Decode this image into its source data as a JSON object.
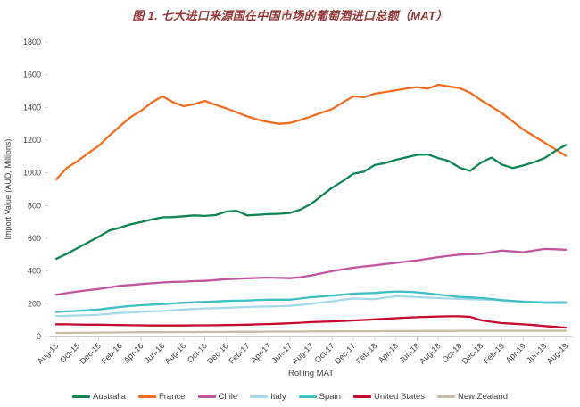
{
  "chart_data": {
    "type": "line",
    "title": "图 1. 七大进口来源国在中国市场的葡萄酒进口总额（MAT）",
    "title_color": "#953735",
    "xlabel": "Rolling MAT",
    "ylabel": "Import Value (AUD, Millions)",
    "ylim": [
      0,
      1800
    ],
    "ytick_step": 200,
    "grid": false,
    "legend_position": "bottom",
    "axis_text_color": "#404040",
    "axis_line_color": "#d0d0d0",
    "x_tick_labels": [
      "Aug-15",
      "Oct-15",
      "Dec-15",
      "Feb-16",
      "Apr-16",
      "Jun-16",
      "Aug-16",
      "Oct-16",
      "Dec-16",
      "Feb-17",
      "Apr-17",
      "Jun-17",
      "Aug-17",
      "Oct-17",
      "Dec-17",
      "Feb-18",
      "Apr-18",
      "Jun-18",
      "Aug-18",
      "Oct-18",
      "Dec-18",
      "Feb-19",
      "Apr-19",
      "Jun-19",
      "Aug-19"
    ],
    "x_tick_every_n_points": 2,
    "series": [
      {
        "name": "Australia",
        "color": "#108454",
        "values": [
          475,
          505,
          540,
          575,
          610,
          648,
          665,
          685,
          700,
          715,
          728,
          730,
          735,
          740,
          737,
          742,
          763,
          768,
          740,
          744,
          748,
          750,
          755,
          775,
          810,
          860,
          910,
          950,
          995,
          1008,
          1048,
          1060,
          1080,
          1095,
          1110,
          1113,
          1090,
          1072,
          1032,
          1012,
          1062,
          1093,
          1050,
          1030,
          1045,
          1065,
          1090,
          1133,
          1170
        ]
      },
      {
        "name": "France",
        "color": "#f36d21",
        "values": [
          960,
          1030,
          1072,
          1120,
          1165,
          1228,
          1285,
          1340,
          1380,
          1430,
          1468,
          1432,
          1408,
          1420,
          1440,
          1416,
          1395,
          1370,
          1345,
          1325,
          1310,
          1300,
          1305,
          1323,
          1345,
          1368,
          1390,
          1430,
          1468,
          1462,
          1484,
          1494,
          1505,
          1515,
          1524,
          1515,
          1538,
          1528,
          1518,
          1490,
          1445,
          1405,
          1365,
          1315,
          1265,
          1225,
          1185,
          1145,
          1105
        ]
      },
      {
        "name": "Chile",
        "color": "#c0549f",
        "values": [
          255,
          265,
          275,
          283,
          290,
          300,
          310,
          315,
          320,
          325,
          330,
          333,
          335,
          338,
          340,
          345,
          350,
          353,
          355,
          358,
          360,
          358,
          356,
          362,
          372,
          386,
          400,
          410,
          420,
          428,
          435,
          443,
          450,
          458,
          465,
          475,
          485,
          493,
          500,
          503,
          505,
          515,
          525,
          520,
          515,
          525,
          535,
          533,
          530
        ]
      },
      {
        "name": "Italy",
        "color": "#a6d9ea",
        "values": [
          125,
          126,
          128,
          130,
          133,
          138,
          143,
          147,
          151,
          154,
          156,
          160,
          165,
          168,
          171,
          173,
          175,
          178,
          180,
          182,
          184,
          185,
          187,
          193,
          200,
          208,
          215,
          224,
          232,
          230,
          228,
          238,
          247,
          244,
          240,
          238,
          235,
          232,
          230,
          228,
          226,
          224,
          220,
          217,
          214,
          212,
          210,
          211,
          212
        ]
      },
      {
        "name": "Spain",
        "color": "#3ec0c2",
        "values": [
          150,
          153,
          156,
          160,
          165,
          173,
          180,
          186,
          191,
          195,
          198,
          202,
          206,
          209,
          211,
          214,
          217,
          219,
          220,
          223,
          225,
          225,
          225,
          232,
          240,
          245,
          250,
          256,
          262,
          264,
          266,
          271,
          275,
          273,
          270,
          263,
          256,
          249,
          242,
          239,
          235,
          229,
          222,
          217,
          212,
          209,
          206,
          205,
          205
        ]
      },
      {
        "name": "United States",
        "color": "#c40a2e",
        "values": [
          75,
          74,
          73,
          72,
          72,
          71,
          70,
          69,
          68,
          67,
          67,
          67,
          67,
          68,
          68,
          69,
          70,
          71,
          72,
          74,
          76,
          78,
          81,
          84,
          88,
          90,
          92,
          95,
          98,
          101,
          105,
          108,
          112,
          115,
          118,
          120,
          122,
          123,
          123,
          120,
          100,
          90,
          82,
          78,
          74,
          70,
          64,
          59,
          54
        ]
      },
      {
        "name": "New Zealand",
        "color": "#c6bda7",
        "values": [
          22,
          22,
          23,
          23,
          24,
          24,
          25,
          25,
          26,
          26,
          26,
          27,
          27,
          27,
          28,
          28,
          28,
          29,
          29,
          29,
          30,
          30,
          30,
          30,
          31,
          31,
          31,
          32,
          32,
          32,
          32,
          33,
          33,
          33,
          34,
          34,
          34,
          34,
          35,
          35,
          35,
          35,
          35,
          35,
          35,
          35,
          35,
          35,
          35
        ]
      }
    ]
  }
}
